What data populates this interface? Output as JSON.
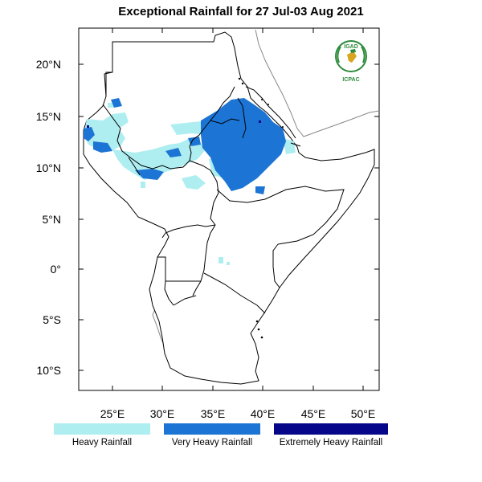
{
  "title": "Exceptional Rainfall for 27 Jul-03 Aug 2021",
  "axes": {
    "lon_ticks": [
      "25°E",
      "30°E",
      "35°E",
      "40°E",
      "45°E",
      "50°E"
    ],
    "lat_ticks": [
      "20°N",
      "15°N",
      "10°N",
      "5°N",
      "0°",
      "5°S",
      "10°S"
    ]
  },
  "logo": {
    "top_text": "IGAD",
    "bottom_text": "ICPAC"
  },
  "legend": [
    {
      "label": "Heavy Rainfall",
      "color": "#aeeef0"
    },
    {
      "label": "Very Heavy Rainfall",
      "color": "#1c74d4"
    },
    {
      "label": "Extremely Heavy Rainfall",
      "color": "#06068a"
    }
  ],
  "colors": {
    "heavy": "#aeeef0",
    "very_heavy": "#1c74d4",
    "extreme": "#06068a",
    "border": "#000000",
    "coast": "#888888"
  }
}
